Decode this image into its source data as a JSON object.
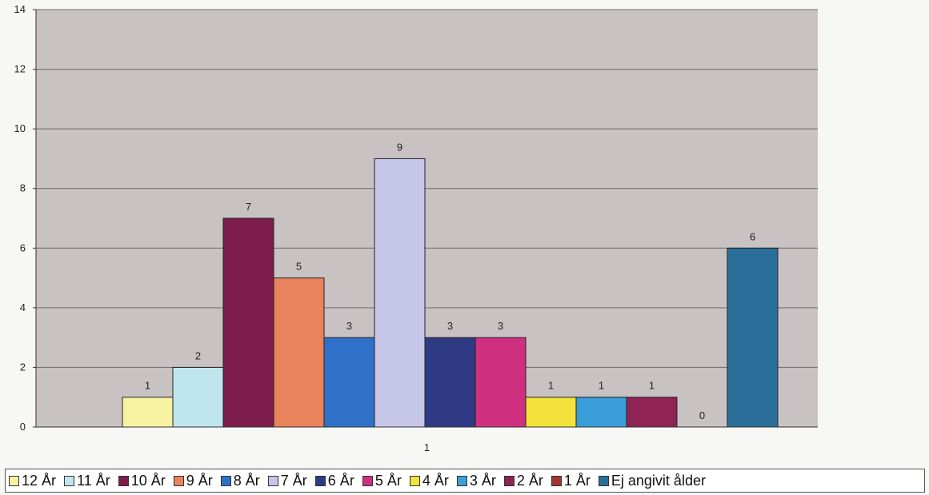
{
  "chart_data": {
    "type": "bar",
    "categories": [
      "1"
    ],
    "ylim": [
      0,
      14
    ],
    "yticks": [
      0,
      2,
      4,
      6,
      8,
      10,
      12,
      14
    ],
    "grid": true,
    "legend_position": "bottom",
    "series": [
      {
        "name": "12 År",
        "value": 1,
        "label": "1",
        "color": "#f6f2a0"
      },
      {
        "name": "11 År",
        "value": 2,
        "label": "2",
        "color": "#bfe6ef"
      },
      {
        "name": "10 År",
        "value": 7,
        "label": "7",
        "color": "#7e1c4c"
      },
      {
        "name": "9 År",
        "value": 5,
        "label": "5",
        "color": "#e8835e"
      },
      {
        "name": "8 År",
        "value": 3,
        "label": "3",
        "color": "#2f71c8"
      },
      {
        "name": "7 År",
        "value": 9,
        "label": "9",
        "color": "#c6c6e8"
      },
      {
        "name": "6 År",
        "value": 3,
        "label": "3",
        "color": "#2e3b84"
      },
      {
        "name": "5 År",
        "value": 3,
        "label": "3",
        "color": "#cf2f7f"
      },
      {
        "name": "4 År",
        "value": 1,
        "label": "1",
        "color": "#f2e23a"
      },
      {
        "name": "3 År",
        "value": 1,
        "label": "1",
        "color": "#3a9ed8"
      },
      {
        "name": "2 År",
        "value": 1,
        "label": "1",
        "color": "#8f2354"
      },
      {
        "name": "1 År",
        "value": 0,
        "label": "0",
        "color": "#a5332f"
      },
      {
        "name": "Ej angivit ålder",
        "value": 6,
        "label": "6",
        "color": "#2a6f99"
      }
    ]
  },
  "colors": {
    "plot_background": "#c9c2c3",
    "gridline": "#6f6a6b",
    "page_background": "#f7f7f5"
  }
}
